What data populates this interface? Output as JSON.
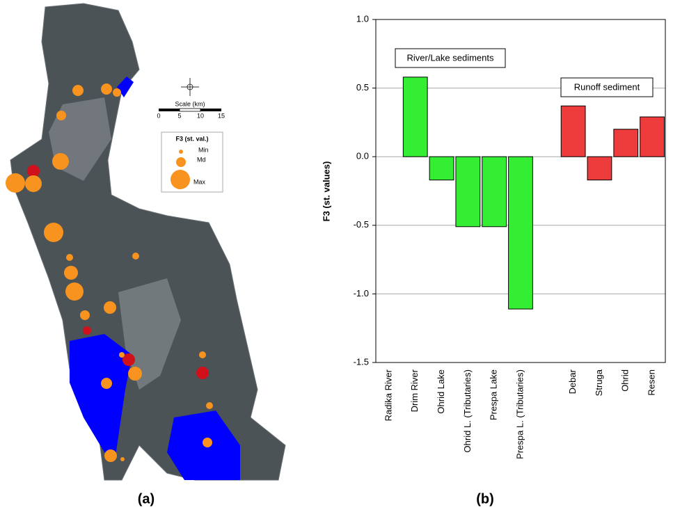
{
  "map": {
    "panel_label": "(a)",
    "scale_title": "Scale (km)",
    "scale_ticks": [
      "0",
      "5",
      "10",
      "15"
    ],
    "legend_title": "F3 (st. val.)",
    "legend_items": [
      "Min",
      "Md",
      "Max"
    ]
  },
  "chart_data": {
    "type": "bar",
    "panel_label": "(b)",
    "y_label": "F3 (st. values)",
    "categories": [
      "Radika River",
      "Drim River",
      "Ohrid Lake",
      "Ohrid L. (Tributaries)",
      "Prespa Lake",
      "Prespa L. (Tributaries)",
      null,
      "Debar",
      "Struga",
      "Ohrid",
      "Resen"
    ],
    "series": [
      {
        "name": "River/Lake sediments",
        "color": "#33ee33",
        "values": [
          0.0,
          0.58,
          -0.17,
          -0.51,
          -0.51,
          -1.11,
          null,
          null,
          null,
          null,
          null
        ]
      },
      {
        "name": "Runoff sediment",
        "color": "#ee3c3c",
        "values": [
          null,
          null,
          null,
          null,
          null,
          null,
          null,
          0.37,
          -0.17,
          0.2,
          0.29
        ]
      }
    ],
    "ylim": [
      -1.5,
      1.0
    ],
    "yticks": [
      -1.5,
      {
        "value": -1.0,
        "label": "-1.0"
      },
      -0.5,
      {
        "value": 0.0,
        "label": "0.0"
      },
      0.5,
      {
        "value": 1.0,
        "label": "1.0"
      }
    ],
    "grid": true
  }
}
